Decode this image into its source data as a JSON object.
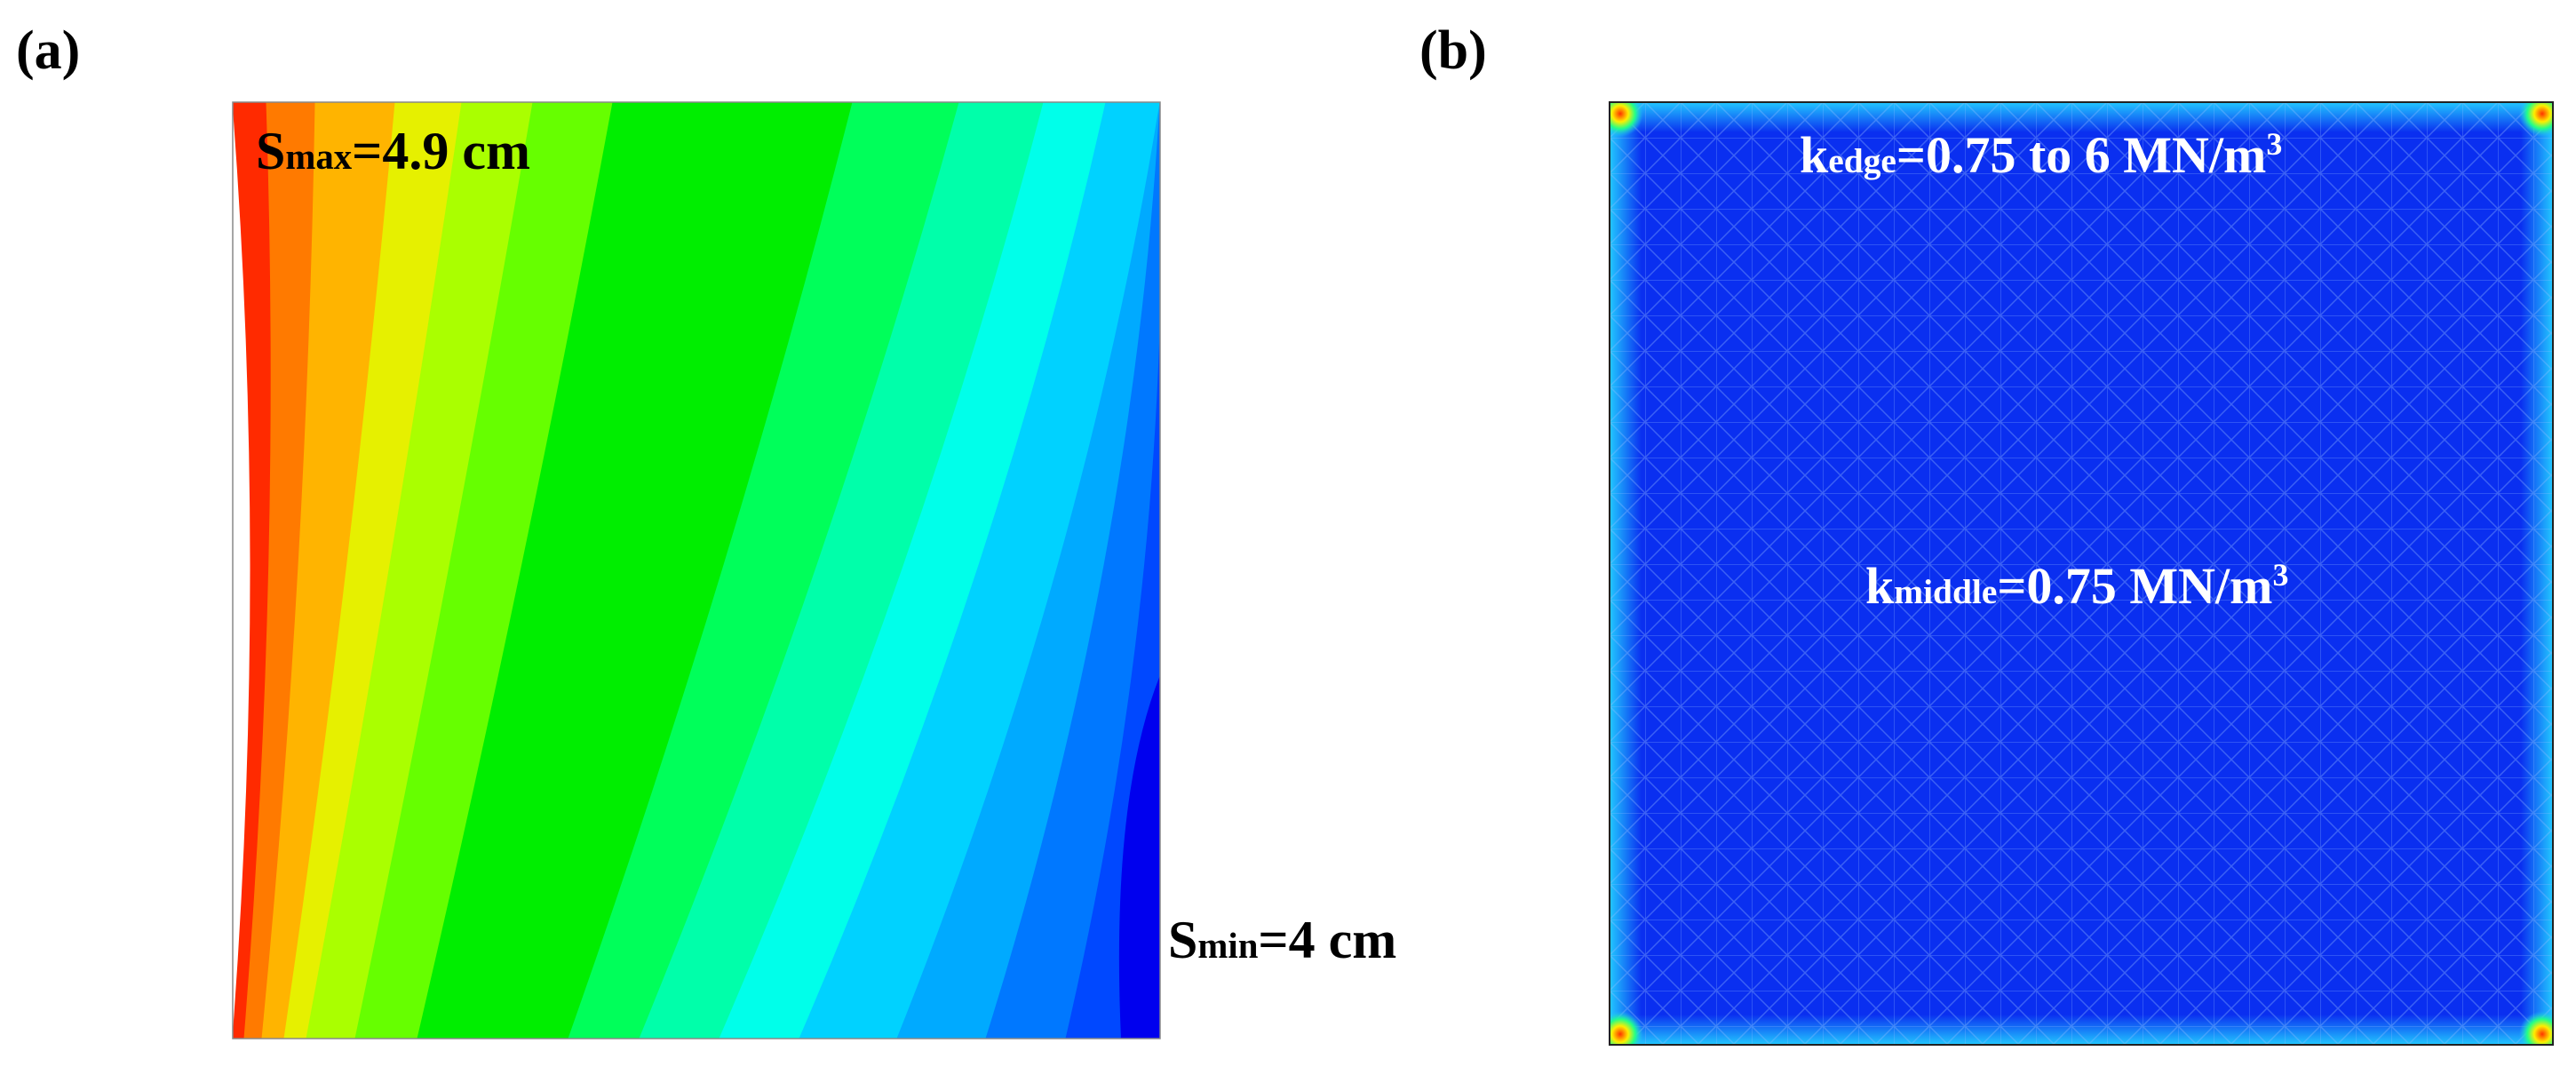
{
  "panel_a": {
    "label": "(a)",
    "smax": {
      "symbol": "S",
      "sub": "max",
      "value": "=4.9 cm"
    },
    "smin": {
      "symbol": "S",
      "sub": "min",
      "value": "=4 cm"
    },
    "contour_colors": [
      "#ff2a00",
      "#ff7a00",
      "#ffb400",
      "#e6f000",
      "#aaff00",
      "#66ff00",
      "#00ee00",
      "#00ee00",
      "#00ff5a",
      "#00ffaa",
      "#00ffea",
      "#00d2ff",
      "#00aaff",
      "#0078ff",
      "#0048ff",
      "#0022ee"
    ]
  },
  "panel_b": {
    "label": "(b)",
    "kedge": {
      "symbol": "k",
      "sub": "edge",
      "value": "=0.75 to 6 MN/m",
      "sup": "3"
    },
    "kmiddle": {
      "symbol": "k",
      "sub": "middle",
      "value": "=0.75 MN/m",
      "sup": "3"
    },
    "field_color": "#0a2ff0",
    "edge_color": "#1aa0ff",
    "corner_color": "#ff3300"
  }
}
